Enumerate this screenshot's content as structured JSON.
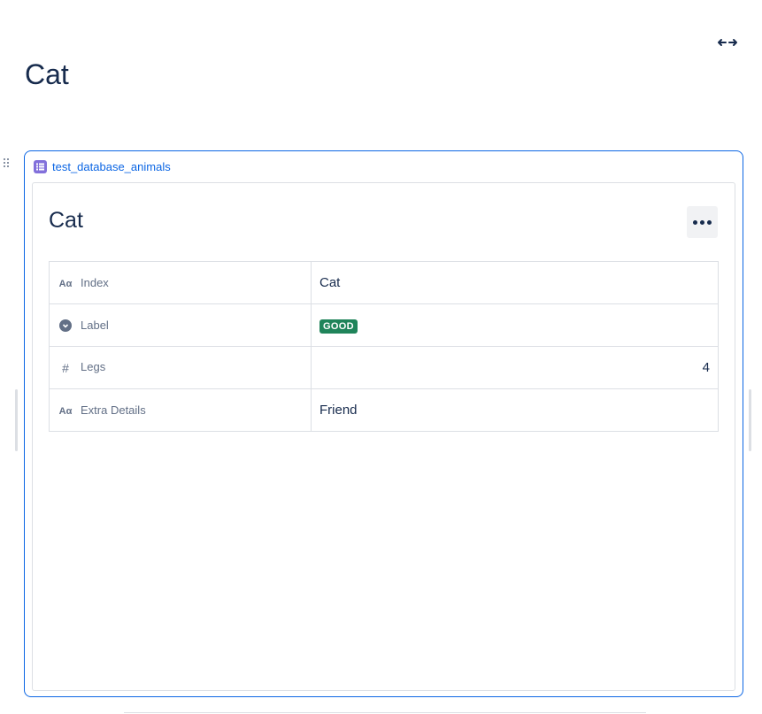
{
  "page": {
    "title": "Cat"
  },
  "macro": {
    "database_name": "test_database_animals",
    "icon": "database-table-icon",
    "accent": "#0c66e4"
  },
  "record": {
    "title": "Cat",
    "more_icon": "more-horizontal-icon",
    "properties": [
      {
        "icon": "text-type-icon",
        "icon_glyph": "Aα",
        "key": "Index",
        "value": "Cat"
      },
      {
        "icon": "select-type-icon",
        "key": "Label",
        "value": "GOOD",
        "badge_color": "#1f845a"
      },
      {
        "icon": "number-type-icon",
        "icon_glyph": "#",
        "key": "Legs",
        "value": "4"
      },
      {
        "icon": "text-type-icon",
        "icon_glyph": "Aα",
        "key": "Extra Details",
        "value": "Friend"
      }
    ]
  }
}
